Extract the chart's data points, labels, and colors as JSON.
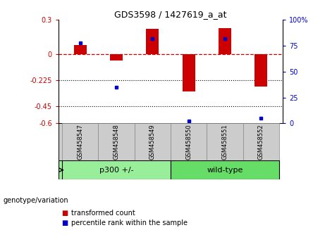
{
  "title": "GDS3598 / 1427619_a_at",
  "samples": [
    "GSM458547",
    "GSM458548",
    "GSM458549",
    "GSM458550",
    "GSM458551",
    "GSM458552"
  ],
  "red_values": [
    0.08,
    -0.05,
    0.22,
    -0.32,
    0.23,
    -0.28
  ],
  "blue_percentiles": [
    78,
    35,
    82,
    2,
    82,
    5
  ],
  "ylim_left": [
    -0.6,
    0.3
  ],
  "ylim_right": [
    0,
    100
  ],
  "yticks_left": [
    0.3,
    0,
    -0.225,
    -0.45,
    -0.6
  ],
  "ytick_labels_left": [
    "0.3",
    "0",
    "-0.225",
    "-0.45",
    "-0.6"
  ],
  "yticks_right": [
    100,
    75,
    50,
    25,
    0
  ],
  "ytick_labels_right": [
    "100%",
    "75",
    "50",
    "25",
    "0"
  ],
  "dotted_yticks": [
    -0.225,
    -0.45
  ],
  "group1_label": "p300 +/-",
  "group2_label": "wild-type",
  "group1_indices": [
    0,
    1,
    2
  ],
  "group2_indices": [
    3,
    4,
    5
  ],
  "legend_red": "transformed count",
  "legend_blue": "percentile rank within the sample",
  "genotype_label": "genotype/variation",
  "bar_width": 0.35,
  "red_color": "#cc0000",
  "blue_color": "#0000cc",
  "group1_color": "#99ee99",
  "group2_color": "#66dd66",
  "dashed_line_color": "#cc0000",
  "bg_color": "#ffffff"
}
